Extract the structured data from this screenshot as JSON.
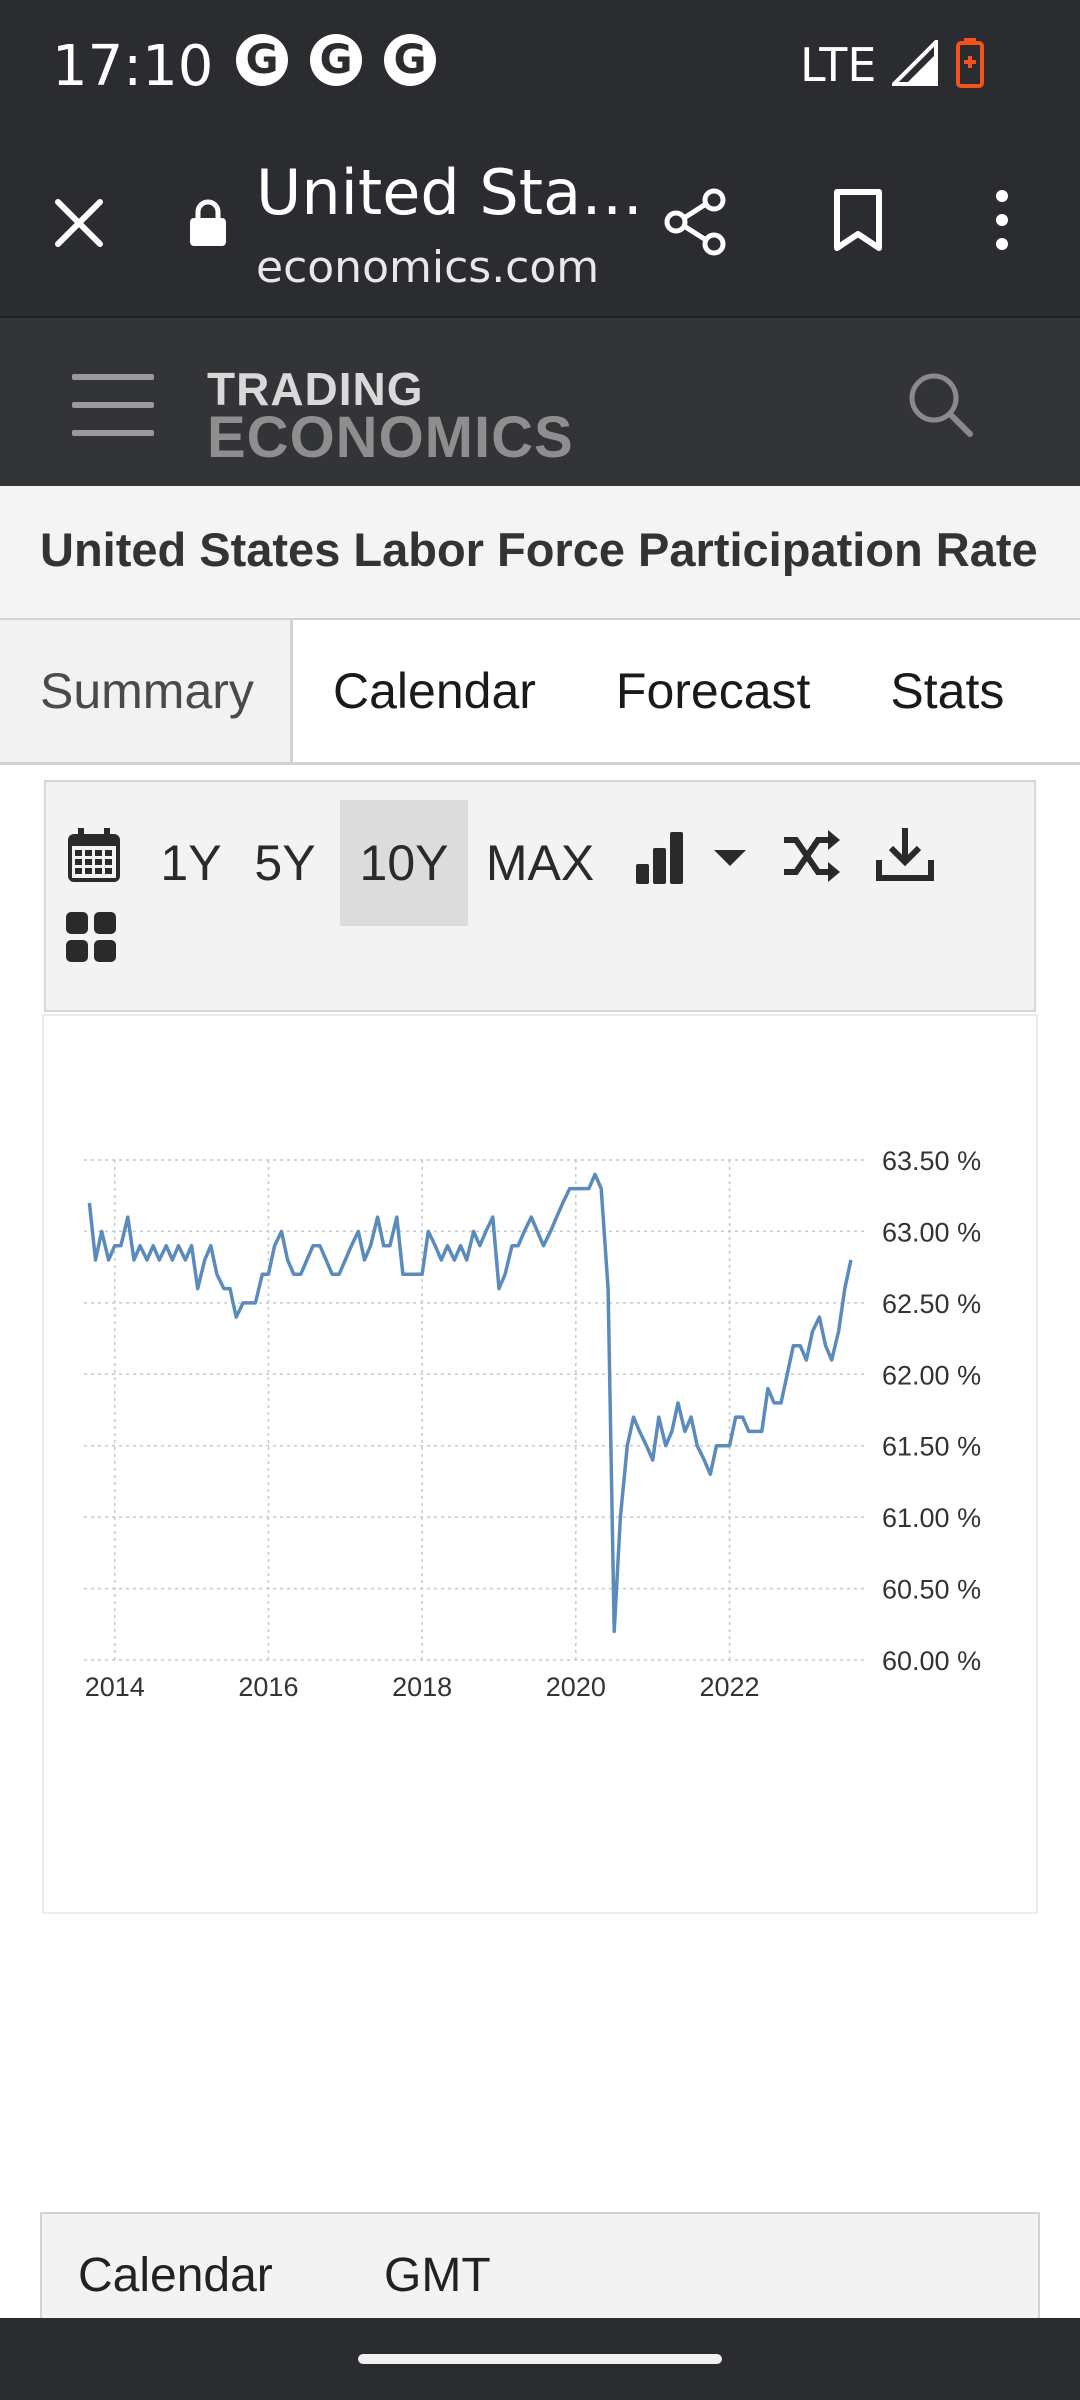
{
  "status_bar": {
    "time": "17:10",
    "notification_icons": [
      "G",
      "G",
      "G"
    ],
    "network": "LTE",
    "battery_color": "#f4511e"
  },
  "browser": {
    "tab_title": "United Sta…",
    "host": "economics.com",
    "icons": [
      "close-icon",
      "lock-icon",
      "share-icon",
      "bookmark-icon",
      "overflow-menu-icon"
    ]
  },
  "site_header": {
    "logo_top": "TRADING",
    "logo_bottom": "ECONOMICS",
    "icons": [
      "hamburger-menu-icon",
      "search-icon"
    ]
  },
  "page": {
    "title": "United States Labor Force Participation Rate"
  },
  "tabs": [
    {
      "label": "Summary",
      "active": true
    },
    {
      "label": "Calendar",
      "active": false
    },
    {
      "label": "Forecast",
      "active": false
    },
    {
      "label": "Stats",
      "active": false
    }
  ],
  "chart_toolbar": {
    "ranges": [
      {
        "label": "1Y",
        "active": false
      },
      {
        "label": "5Y",
        "active": false
      },
      {
        "label": "10Y",
        "active": true
      },
      {
        "label": "MAX",
        "active": false
      }
    ],
    "icons": [
      "calendar-icon",
      "bar-chart-icon",
      "dropdown-caret-icon",
      "shuffle-icon",
      "download-icon",
      "grid-icon"
    ]
  },
  "chart_data": {
    "type": "line",
    "series": [
      {
        "color": "#5b8bbd",
        "x": [
          2013.67,
          2013.75,
          2013.83,
          2013.92,
          2014.0,
          2014.08,
          2014.17,
          2014.25,
          2014.33,
          2014.42,
          2014.5,
          2014.58,
          2014.67,
          2014.75,
          2014.83,
          2014.92,
          2015.0,
          2015.08,
          2015.17,
          2015.25,
          2015.33,
          2015.42,
          2015.5,
          2015.58,
          2015.67,
          2015.75,
          2015.83,
          2015.92,
          2016.0,
          2016.08,
          2016.17,
          2016.25,
          2016.33,
          2016.42,
          2016.5,
          2016.58,
          2016.67,
          2016.75,
          2016.83,
          2016.92,
          2017.0,
          2017.08,
          2017.17,
          2017.25,
          2017.33,
          2017.42,
          2017.5,
          2017.58,
          2017.67,
          2017.75,
          2017.83,
          2017.92,
          2018.0,
          2018.08,
          2018.17,
          2018.25,
          2018.33,
          2018.42,
          2018.5,
          2018.58,
          2018.67,
          2018.75,
          2018.83,
          2018.92,
          2019.0,
          2019.08,
          2019.17,
          2019.25,
          2019.33,
          2019.42,
          2019.5,
          2019.58,
          2019.67,
          2019.75,
          2019.83,
          2019.92,
          2020.0,
          2020.08,
          2020.17,
          2020.25,
          2020.33,
          2020.42,
          2020.5,
          2020.58,
          2020.67,
          2020.75,
          2020.83,
          2020.92,
          2021.0,
          2021.08,
          2021.17,
          2021.25,
          2021.33,
          2021.42,
          2021.5,
          2021.58,
          2021.67,
          2021.75,
          2021.83,
          2021.92,
          2022.0,
          2022.08,
          2022.17,
          2022.25,
          2022.33,
          2022.42,
          2022.5,
          2022.58,
          2022.67,
          2022.75,
          2022.83,
          2022.92,
          2023.0,
          2023.08,
          2023.17,
          2023.25,
          2023.33,
          2023.42,
          2023.5,
          2023.58
        ],
        "y": [
          63.2,
          62.8,
          63.0,
          62.8,
          62.9,
          62.9,
          63.1,
          62.8,
          62.9,
          62.8,
          62.9,
          62.8,
          62.9,
          62.8,
          62.9,
          62.8,
          62.9,
          62.6,
          62.8,
          62.9,
          62.7,
          62.6,
          62.6,
          62.4,
          62.5,
          62.5,
          62.5,
          62.7,
          62.7,
          62.9,
          63.0,
          62.8,
          62.7,
          62.7,
          62.8,
          62.9,
          62.9,
          62.8,
          62.7,
          62.7,
          62.8,
          62.9,
          63.0,
          62.8,
          62.9,
          63.1,
          62.9,
          62.9,
          63.1,
          62.7,
          62.7,
          62.7,
          62.7,
          63.0,
          62.9,
          62.8,
          62.9,
          62.8,
          62.9,
          62.8,
          63.0,
          62.9,
          63.0,
          63.1,
          62.6,
          62.7,
          62.9,
          62.9,
          63.0,
          63.1,
          63.0,
          62.9,
          63.0,
          63.1,
          63.2,
          63.3,
          63.3,
          63.3,
          63.3,
          63.4,
          63.3,
          62.6,
          60.2,
          61.0,
          61.5,
          61.7,
          61.6,
          61.5,
          61.4,
          61.7,
          61.5,
          61.6,
          61.8,
          61.6,
          61.7,
          61.5,
          61.4,
          61.3,
          61.5,
          61.5,
          61.5,
          61.7,
          61.7,
          61.6,
          61.6,
          61.6,
          61.9,
          61.8,
          61.8,
          62.0,
          62.2,
          62.2,
          62.1,
          62.3,
          62.4,
          62.2,
          62.1,
          62.3,
          62.6,
          62.8
        ]
      }
    ],
    "x_ticks": [
      "2014",
      "2016",
      "2018",
      "2020",
      "2022"
    ],
    "x_tick_values": [
      2014,
      2016,
      2018,
      2020,
      2022
    ],
    "y_ticks": [
      "63.50 %",
      "63.00 %",
      "62.50 %",
      "62.00 %",
      "61.50 %",
      "61.00 %",
      "60.50 %",
      "60.00 %"
    ],
    "y_tick_values": [
      63.5,
      63.0,
      62.5,
      62.0,
      61.5,
      61.0,
      60.5,
      60.0
    ],
    "xlim": [
      2013.6,
      2023.75
    ],
    "ylim": [
      60.0,
      63.5
    ],
    "grid": true,
    "y_axis_side": "right",
    "xlabel": "",
    "ylabel": ""
  },
  "calendar_table": {
    "headers": [
      "Calendar",
      "GMT"
    ]
  }
}
